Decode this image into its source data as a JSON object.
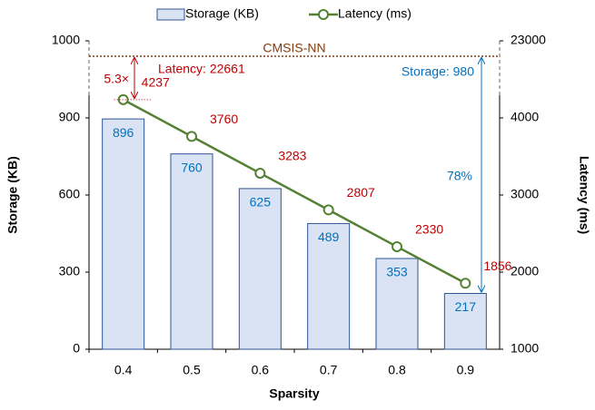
{
  "chart_data": {
    "type": "bar_line",
    "x_label": "Sparsity",
    "y_label": "Storage (KB)",
    "y2_label": "Latency (ms)",
    "categories": [
      "0.4",
      "0.5",
      "0.6",
      "0.7",
      "0.8",
      "0.9"
    ],
    "series": [
      {
        "name": "Storage (KB)",
        "type": "bar",
        "color": "#dae3f3",
        "values": [
          896,
          760,
          625,
          489,
          353,
          217
        ]
      },
      {
        "name": "Latency (ms)",
        "type": "line",
        "axis": "y2",
        "color": "#548235",
        "values": [
          4237,
          3760,
          3283,
          2807,
          2330,
          1856
        ]
      }
    ],
    "ylim": [
      0,
      1000
    ],
    "yticks": [
      0,
      300,
      600,
      900,
      1000
    ],
    "y2lim": [
      1000,
      23000
    ],
    "y2ticks": [
      1000,
      2000,
      3000,
      4000,
      23000
    ],
    "baseline": {
      "name": "CMSIS-NN",
      "storage": 980,
      "latency": 22661,
      "storage_label": "Storage: 980",
      "latency_label": "Latency: 22661"
    },
    "annotations": [
      "5.3×",
      "78%"
    ],
    "legend": "top"
  }
}
